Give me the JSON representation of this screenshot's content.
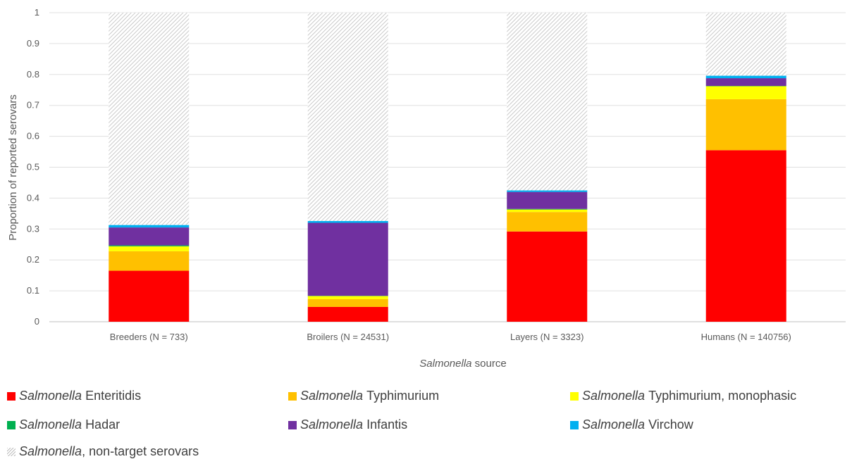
{
  "chart_data": {
    "type": "bar",
    "stacked": true,
    "categories": [
      "Breeders (N = 733)",
      "Broilers (N = 24531)",
      "Layers (N = 3323)",
      "Humans (N = 140756)"
    ],
    "series": [
      {
        "name": "Enteritidis",
        "color": "#ff0000",
        "values": [
          0.165,
          0.048,
          0.292,
          0.555
        ]
      },
      {
        "name": "Typhimurium",
        "color": "#ffc000",
        "values": [
          0.063,
          0.025,
          0.063,
          0.165
        ]
      },
      {
        "name": "Typhimurium, monophasic",
        "color": "#ffff00",
        "values": [
          0.016,
          0.01,
          0.008,
          0.042
        ]
      },
      {
        "name": "Hadar",
        "color": "#00b050",
        "values": [
          0.003,
          0.001,
          0.002,
          0.001
        ]
      },
      {
        "name": "Infantis",
        "color": "#7030a0",
        "values": [
          0.058,
          0.236,
          0.055,
          0.025
        ]
      },
      {
        "name": "Virchow",
        "color": "#00b0f0",
        "values": [
          0.008,
          0.006,
          0.005,
          0.008
        ]
      },
      {
        "name": ", non-target serovars",
        "color": "hatch-gray",
        "values": [
          0.687,
          0.674,
          0.575,
          0.204
        ]
      }
    ],
    "ylim": [
      0,
      1
    ],
    "yticks": [
      "0",
      "0.1",
      "0.2",
      "0.3",
      "0.4",
      "0.5",
      "0.6",
      "0.7",
      "0.8",
      "0.9",
      "1"
    ],
    "ylabel": "Proportion of reported serovars",
    "xlabel_italic": "Salmonella",
    "xlabel_rest": " source",
    "legend_prefix": "Salmonella",
    "grid": true,
    "legend_position": "bottom"
  }
}
